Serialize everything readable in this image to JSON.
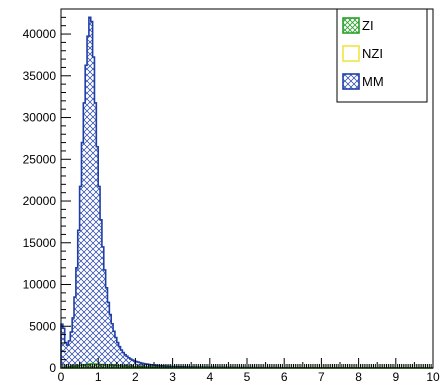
{
  "chart_data": {
    "type": "histogram",
    "title": "",
    "xlabel": "",
    "ylabel": "",
    "xlim": [
      0,
      10
    ],
    "ylim": [
      0,
      43000
    ],
    "x_ticks": [
      "0",
      "1",
      "2",
      "3",
      "4",
      "5",
      "6",
      "7",
      "8",
      "9",
      "10"
    ],
    "y_ticks": [
      "0",
      "5000",
      "10000",
      "15000",
      "20000",
      "25000",
      "30000",
      "35000",
      "40000"
    ],
    "y_tick_values": [
      0,
      5000,
      10000,
      15000,
      20000,
      25000,
      30000,
      35000,
      40000
    ],
    "bin_width": 0.05,
    "grid": false,
    "legend_position": "top-right",
    "series": [
      {
        "name": "ZI",
        "style": "hatched",
        "color": "#2ca02c",
        "x": [
          0.0,
          0.5,
          0.8,
          1.0,
          1.5,
          2.0,
          3.0,
          5.0,
          10.0
        ],
        "values": [
          0,
          300,
          500,
          450,
          300,
          150,
          60,
          20,
          0
        ]
      },
      {
        "name": "NZI",
        "style": "filled",
        "color": "#f0e442",
        "x": [
          0.0,
          0.5,
          0.8,
          1.0,
          1.5,
          2.0,
          3.0,
          5.0,
          10.0
        ],
        "values": [
          0,
          150,
          250,
          220,
          150,
          80,
          30,
          10,
          0
        ]
      },
      {
        "name": "MM",
        "style": "cross-hatched",
        "color": "#1f3fa8",
        "x": [
          0.0,
          0.05,
          0.1,
          0.15,
          0.2,
          0.25,
          0.3,
          0.35,
          0.4,
          0.45,
          0.5,
          0.55,
          0.6,
          0.65,
          0.7,
          0.75,
          0.8,
          0.85,
          0.9,
          0.95,
          1.0,
          1.05,
          1.1,
          1.15,
          1.2,
          1.25,
          1.3,
          1.35,
          1.4,
          1.45,
          1.5,
          1.55,
          1.6,
          1.7,
          1.8,
          1.9,
          2.0,
          2.2,
          2.4,
          2.6,
          2.8,
          3.0,
          3.5,
          4.0,
          5.0,
          6.0,
          8.0,
          10.0
        ],
        "values": [
          4500,
          6000,
          3500,
          2600,
          2900,
          3600,
          5000,
          7000,
          10000,
          14000,
          19000,
          24500,
          29500,
          34000,
          38500,
          41000,
          43000,
          40000,
          34500,
          29000,
          24000,
          19500,
          16000,
          13000,
          10500,
          8700,
          7000,
          5800,
          4800,
          4000,
          3300,
          2800,
          2300,
          1700,
          1300,
          1000,
          800,
          550,
          400,
          300,
          220,
          170,
          110,
          80,
          50,
          30,
          15,
          0
        ]
      }
    ]
  }
}
